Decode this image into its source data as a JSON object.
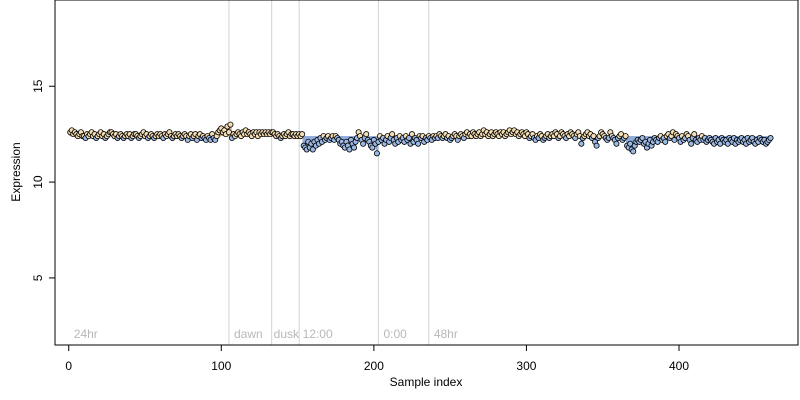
{
  "chart_data": {
    "type": "scatter",
    "title": "",
    "xlabel": "Sample index",
    "ylabel": "Expression",
    "xlim": [
      -9,
      478
    ],
    "ylim": [
      1.5,
      19.5
    ],
    "xticks": [
      0,
      100,
      200,
      300,
      400
    ],
    "yticks": [
      5,
      10,
      15
    ],
    "grid": false,
    "legend": "none",
    "separators": [
      105,
      133,
      151,
      203,
      236
    ],
    "annotations": [
      {
        "x": 2,
        "label": "24hr"
      },
      {
        "x": 107,
        "label": "dawn"
      },
      {
        "x": 133,
        "label": "dusk"
      },
      {
        "x": 152,
        "label": "12:00"
      },
      {
        "x": 205,
        "label": "0:00"
      },
      {
        "x": 238,
        "label": "48hr"
      }
    ],
    "colors": {
      "point_light": "#f5deb3",
      "point_dark": "#9cb9e6",
      "band_above": "#c9a27a",
      "band_below": "#8aa6d6",
      "separator": "#d3d3d3",
      "annotation": "#b8b8b8"
    },
    "baseline": 12.4,
    "series": [
      {
        "x_start": 1,
        "values": [
          12.6,
          12.7,
          12.5,
          12.6,
          12.5,
          12.4,
          12.5,
          12.6,
          12.4,
          12.4,
          12.3,
          12.5,
          12.4,
          12.5,
          12.6,
          12.4,
          12.5,
          12.3,
          12.4,
          12.5,
          12.6,
          12.4,
          12.5,
          12.3,
          12.4,
          12.5,
          12.6,
          12.6,
          12.5,
          12.4,
          12.5,
          12.3,
          12.4,
          12.5,
          12.4,
          12.3,
          12.4,
          12.5,
          12.4,
          12.5,
          12.3,
          12.4,
          12.5,
          12.5,
          12.4,
          12.3,
          12.4,
          12.5,
          12.6,
          12.4,
          12.5,
          12.3,
          12.4,
          12.5,
          12.4,
          12.3,
          12.4,
          12.5,
          12.4,
          12.5,
          12.4,
          12.3,
          12.5,
          12.4,
          12.5,
          12.6,
          12.4,
          12.3,
          12.4,
          12.5,
          12.4,
          12.5,
          12.4,
          12.3,
          12.4,
          12.5,
          12.4,
          12.2,
          12.4,
          12.5,
          12.3,
          12.4,
          12.5,
          12.2,
          12.4,
          12.5,
          12.3,
          12.4,
          12.3,
          12.2,
          12.4,
          12.3,
          12.2,
          12.5,
          12.3,
          12.2,
          12.4,
          12.6,
          12.7,
          12.8,
          12.6,
          12.7,
          12.5,
          12.9,
          12.6,
          13.0,
          12.3,
          12.5,
          12.4,
          12.5,
          12.6,
          12.5,
          12.4,
          12.6,
          12.5,
          12.7,
          12.5,
          12.6,
          12.5,
          12.4,
          12.6,
          12.5,
          12.6,
          12.4,
          12.6,
          12.5,
          12.6,
          12.5,
          12.6,
          12.5,
          12.6,
          12.5,
          12.6,
          12.6,
          12.5,
          12.4,
          12.5,
          12.4,
          12.3,
          12.4,
          12.5,
          12.4,
          12.5,
          12.6,
          12.4,
          12.5,
          12.5,
          12.4,
          12.5,
          12.4,
          12.5,
          12.4,
          12.5,
          11.9,
          11.8,
          11.7,
          12.1,
          11.8,
          12.0,
          11.7,
          12.1,
          11.9,
          12.2,
          12.0,
          12.3,
          12.1,
          12.4,
          12.2,
          12.3,
          12.4,
          12.2,
          12.3,
          12.4,
          12.2,
          12.4,
          12.3,
          12.2,
          12.0,
          12.1,
          11.9,
          11.8,
          12.1,
          11.9,
          11.7,
          12.2,
          12.0,
          11.8,
          12.1,
          12.3,
          12.6,
          12.4,
          12.2,
          12.0,
          12.3,
          12.5,
          12.2,
          12.1,
          11.9,
          11.8,
          12.2,
          12.0,
          11.5,
          12.1,
          12.4,
          12.2,
          12.3,
          12.0,
          12.2,
          12.4,
          12.1,
          12.3,
          12.5,
          12.2,
          12.0,
          12.3,
          12.1,
          12.4,
          12.2,
          12.3,
          12.1,
          12.4,
          12.2,
          12.3,
          12.0,
          12.5,
          12.1,
          12.3,
          12.2,
          12.0,
          12.4,
          12.3,
          12.4,
          12.1,
          12.3,
          12.2,
          12.4,
          12.3,
          12.2,
          12.4,
          12.3,
          12.4,
          12.3,
          12.5,
          12.4,
          12.3,
          12.4,
          12.5,
          12.3,
          12.4,
          12.2,
          12.3,
          12.4,
          12.5,
          12.4,
          12.2,
          12.4,
          12.5,
          12.4,
          12.3,
          12.5,
          12.6,
          12.4,
          12.5,
          12.4,
          12.6,
          12.5,
          12.4,
          12.5,
          12.6,
          12.4,
          12.5,
          12.7,
          12.5,
          12.6,
          12.4,
          12.5,
          12.6,
          12.4,
          12.5,
          12.6,
          12.5,
          12.4,
          12.6,
          12.5,
          12.6,
          12.4,
          12.5,
          12.6,
          12.7,
          12.5,
          12.6,
          12.7,
          12.5,
          12.6,
          12.4,
          12.5,
          12.6,
          12.5,
          12.4,
          12.6,
          12.5,
          12.3,
          12.4,
          12.5,
          12.3,
          12.2,
          12.4,
          12.3,
          12.5,
          12.4,
          12.2,
          12.3,
          12.4,
          12.5,
          12.3,
          12.4,
          12.5,
          12.4,
          12.6,
          12.5,
          12.3,
          12.4,
          12.6,
          12.5,
          12.4,
          12.3,
          12.5,
          12.4,
          12.6,
          12.5,
          12.4,
          12.3,
          12.5,
          12.6,
          12.4,
          12.0,
          12.3,
          12.4,
          12.5,
          12.6,
          12.4,
          12.5,
          12.3,
          12.4,
          12.1,
          11.9,
          12.3,
          12.4,
          12.6,
          12.5,
          12.4,
          12.3,
          12.2,
          12.3,
          12.6,
          12.4,
          12.3,
          12.2,
          12.0,
          12.3,
          12.4,
          12.5,
          12.2,
          12.3,
          12.4,
          11.9,
          11.8,
          12.0,
          11.7,
          11.6,
          11.9,
          12.1,
          12.2,
          12.1,
          12.2,
          12.3,
          12.0,
          12.1,
          11.8,
          12.0,
          12.2,
          11.9,
          12.1,
          12.3,
          12.2,
          12.1,
          12.3,
          12.4,
          12.2,
          12.3,
          12.1,
          12.4,
          12.5,
          12.3,
          12.4,
          12.6,
          12.2,
          12.5,
          12.4,
          12.3,
          12.1,
          12.4,
          12.2,
          12.3,
          12.5,
          12.4,
          12.2,
          12.0,
          12.3,
          12.5,
          12.2,
          12.1,
          12.3,
          12.2,
          12.4,
          12.2,
          12.3,
          12.1,
          12.2,
          12.3,
          12.2,
          12.1,
          12.0,
          12.3,
          12.1,
          12.2,
          12.0,
          12.3,
          12.2,
          12.1,
          12.2,
          12.0,
          12.3,
          12.2,
          12.1,
          12.3,
          12.0,
          12.2,
          12.1,
          12.2,
          12.3,
          12.1,
          12.2,
          12.0,
          12.3,
          12.1,
          12.2,
          12.3,
          12.1,
          12.0,
          12.2,
          12.1,
          12.3,
          12.2,
          12.1,
          12.2,
          12.0,
          12.1,
          12.2,
          12.3
        ]
      }
    ]
  }
}
